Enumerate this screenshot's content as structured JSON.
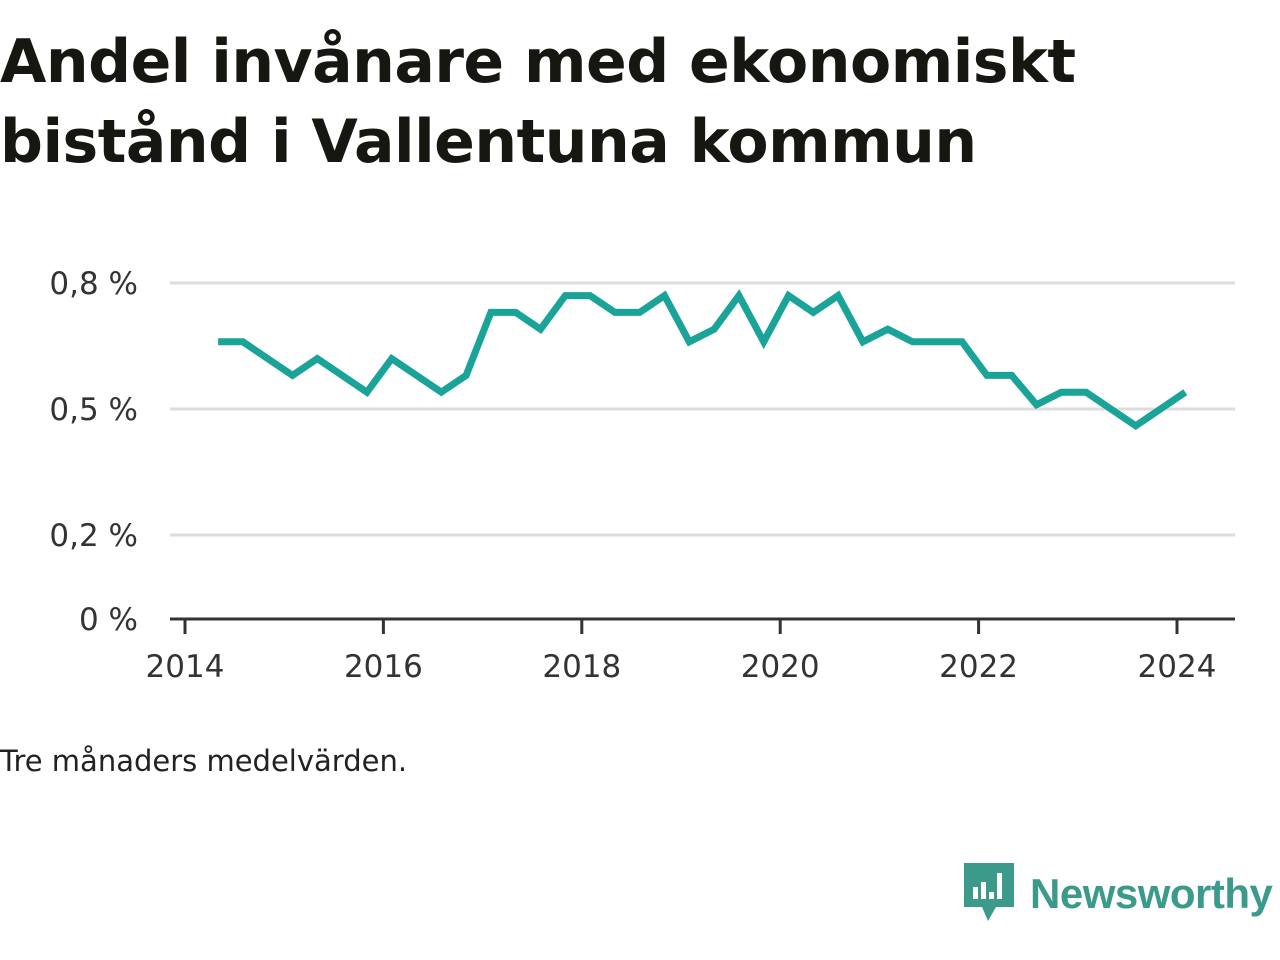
{
  "title_lines": [
    "Andel invånare med ekonomiskt",
    "bistånd i Vallentuna kommun"
  ],
  "note": "Tre månaders medelvärden.",
  "brand": {
    "name": "Newsworthy",
    "icon": "newsworthy-logo-icon"
  },
  "colors": {
    "line": "#1aa398",
    "brand": "#3c9a8a",
    "grid": "#dddddd",
    "axis": "#333333"
  },
  "chart_data": {
    "type": "line",
    "ylim": [
      0,
      0.8
    ],
    "y_ticks": [
      0,
      0.2,
      0.5,
      0.8
    ],
    "y_tick_labels": [
      "0 %",
      "0,2 %",
      "0,5 %",
      "0,8 %"
    ],
    "x_ticks": [
      2014,
      2016,
      2018,
      2020,
      2022,
      2024
    ],
    "x_tick_labels": [
      "2014",
      "2016",
      "2018",
      "2020",
      "2022",
      "2024"
    ],
    "grid": true,
    "series": [
      {
        "x": [
          "2014-05",
          "2014-08",
          "2014-11",
          "2015-02",
          "2015-05",
          "2015-08",
          "2015-11",
          "2016-02",
          "2016-05",
          "2016-08",
          "2016-11",
          "2017-02",
          "2017-05",
          "2017-08",
          "2017-11",
          "2018-02",
          "2018-05",
          "2018-08",
          "2018-11",
          "2019-02",
          "2019-05",
          "2019-08",
          "2019-11",
          "2020-02",
          "2020-05",
          "2020-08",
          "2020-11",
          "2021-02",
          "2021-05",
          "2021-08",
          "2021-11",
          "2022-02",
          "2022-05",
          "2022-08",
          "2022-11",
          "2023-02",
          "2023-05",
          "2023-08",
          "2023-11",
          "2024-02"
        ],
        "values": [
          0.66,
          0.66,
          0.62,
          0.58,
          0.62,
          0.58,
          0.54,
          0.62,
          0.58,
          0.54,
          0.58,
          0.73,
          0.73,
          0.69,
          0.77,
          0.77,
          0.73,
          0.73,
          0.77,
          0.66,
          0.69,
          0.77,
          0.66,
          0.77,
          0.73,
          0.77,
          0.66,
          0.69,
          0.66,
          0.66,
          0.66,
          0.58,
          0.58,
          0.51,
          0.54,
          0.54,
          0.5,
          0.46,
          0.5,
          0.54
        ]
      }
    ]
  }
}
